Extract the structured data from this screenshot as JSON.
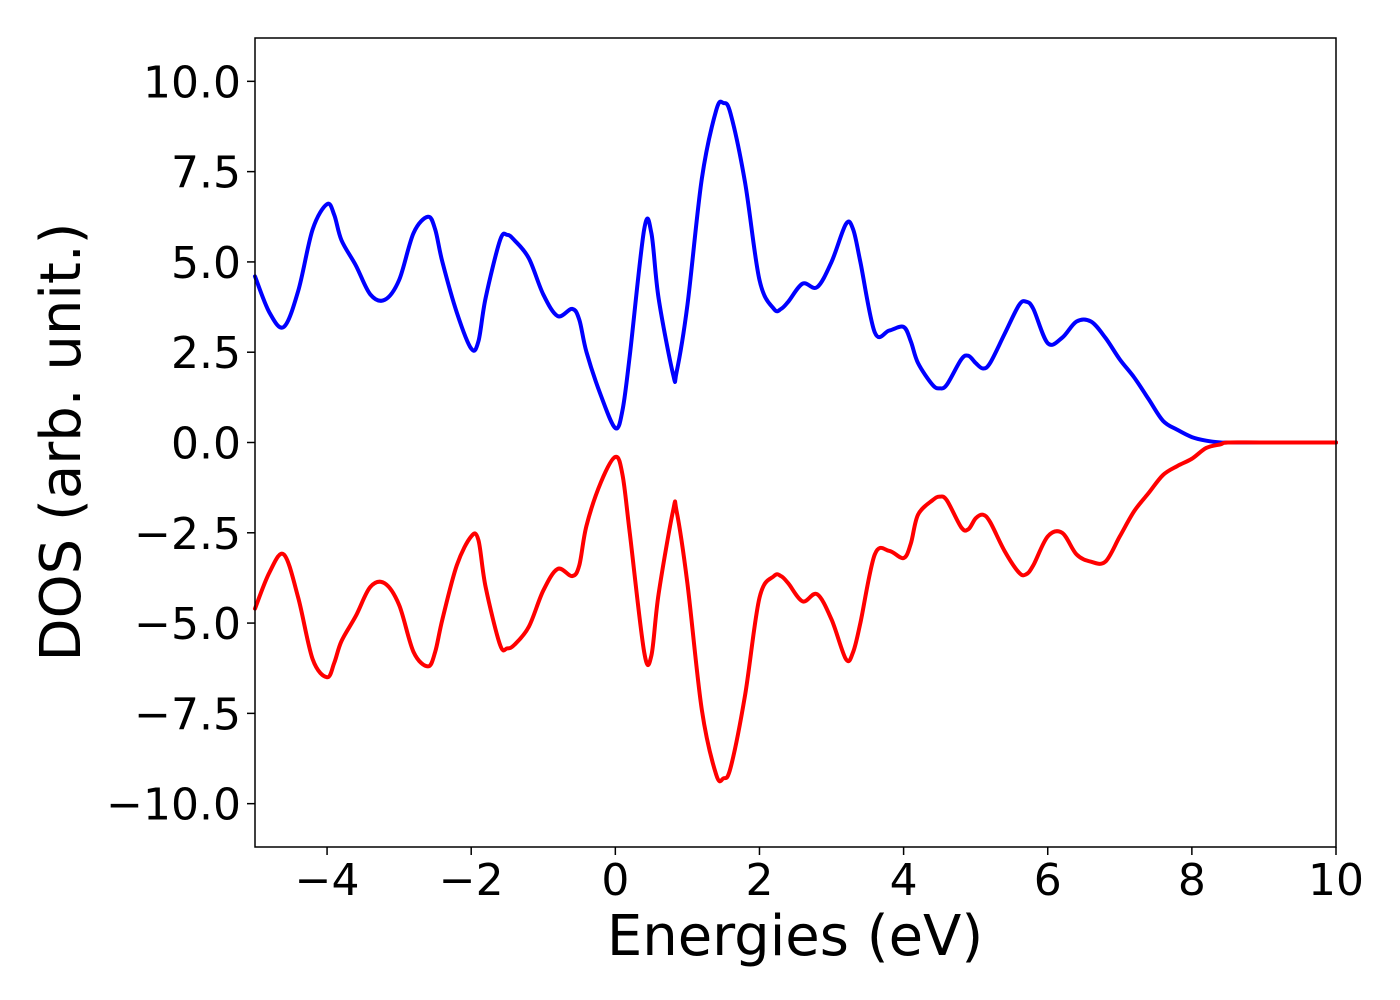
{
  "chart_data": {
    "type": "line",
    "title": "",
    "xlabel": "Energies (eV)",
    "ylabel": "DOS (arb. unit.)",
    "xlim": [
      -5,
      10
    ],
    "ylim": [
      -11.2,
      11.2
    ],
    "xticks": [
      -4,
      -2,
      0,
      2,
      4,
      6,
      8,
      10
    ],
    "xtick_labels": [
      "−4",
      "−2",
      "0",
      "2",
      "4",
      "6",
      "8",
      "10"
    ],
    "yticks": [
      10.0,
      7.5,
      5.0,
      2.5,
      0.0,
      -2.5,
      -5.0,
      -7.5,
      -10.0
    ],
    "ytick_labels": [
      "10.0",
      "7.5",
      "5.0",
      "2.5",
      "0.0",
      "−2.5",
      "−5.0",
      "−7.5",
      "−10.0"
    ],
    "grid": false,
    "legend": "none",
    "series": [
      {
        "color": "#0000ff",
        "x": [
          -5.0,
          -4.8,
          -4.6,
          -4.4,
          -4.2,
          -4.0,
          -3.9,
          -3.8,
          -3.6,
          -3.4,
          -3.2,
          -3.0,
          -2.8,
          -2.6,
          -2.5,
          -2.4,
          -2.2,
          -2.0,
          -1.9,
          -1.8,
          -1.6,
          -1.5,
          -1.4,
          -1.2,
          -1.0,
          -0.8,
          -0.6,
          -0.5,
          -0.4,
          -0.2,
          0.0,
          0.1,
          0.2,
          0.4,
          0.5,
          0.6,
          0.8,
          0.85,
          1.0,
          1.2,
          1.4,
          1.5,
          1.6,
          1.8,
          2.0,
          2.2,
          2.3,
          2.4,
          2.6,
          2.8,
          3.0,
          3.2,
          3.3,
          3.4,
          3.6,
          3.8,
          4.0,
          4.1,
          4.2,
          4.4,
          4.5,
          4.6,
          4.8,
          4.9,
          5.0,
          5.1,
          5.2,
          5.4,
          5.6,
          5.7,
          5.8,
          6.0,
          6.2,
          6.4,
          6.6,
          6.8,
          7.0,
          7.2,
          7.4,
          7.6,
          7.8,
          8.0,
          8.2,
          8.4,
          8.5,
          9.0,
          10.0
        ],
        "y": [
          4.6,
          3.6,
          3.2,
          4.2,
          5.9,
          6.6,
          6.3,
          5.6,
          4.9,
          4.1,
          3.95,
          4.5,
          5.8,
          6.25,
          5.9,
          5.0,
          3.6,
          2.6,
          2.8,
          4.0,
          5.6,
          5.75,
          5.6,
          5.1,
          4.1,
          3.5,
          3.7,
          3.4,
          2.5,
          1.3,
          0.4,
          0.9,
          2.4,
          5.9,
          5.8,
          4.0,
          1.9,
          1.95,
          3.8,
          7.3,
          9.2,
          9.4,
          9.1,
          7.2,
          4.5,
          3.7,
          3.7,
          3.9,
          4.4,
          4.3,
          5.0,
          6.05,
          5.9,
          5.0,
          3.05,
          3.1,
          3.2,
          2.8,
          2.2,
          1.6,
          1.5,
          1.6,
          2.3,
          2.4,
          2.2,
          2.05,
          2.2,
          3.0,
          3.8,
          3.9,
          3.7,
          2.75,
          2.9,
          3.35,
          3.35,
          2.9,
          2.3,
          1.8,
          1.2,
          0.6,
          0.35,
          0.15,
          0.05,
          0.0,
          0.0,
          0.0,
          0.0
        ]
      },
      {
        "color": "#ff0000",
        "x": [
          -5.0,
          -4.8,
          -4.6,
          -4.4,
          -4.2,
          -4.0,
          -3.9,
          -3.8,
          -3.6,
          -3.4,
          -3.2,
          -3.0,
          -2.8,
          -2.6,
          -2.5,
          -2.4,
          -2.2,
          -2.0,
          -1.9,
          -1.8,
          -1.6,
          -1.5,
          -1.4,
          -1.2,
          -1.0,
          -0.8,
          -0.6,
          -0.5,
          -0.4,
          -0.2,
          0.0,
          0.1,
          0.2,
          0.4,
          0.5,
          0.6,
          0.8,
          0.85,
          1.0,
          1.2,
          1.4,
          1.5,
          1.6,
          1.8,
          2.0,
          2.2,
          2.3,
          2.4,
          2.6,
          2.8,
          3.0,
          3.2,
          3.3,
          3.4,
          3.6,
          3.8,
          4.0,
          4.1,
          4.2,
          4.4,
          4.5,
          4.6,
          4.8,
          4.9,
          5.0,
          5.1,
          5.2,
          5.4,
          5.6,
          5.7,
          5.8,
          6.0,
          6.2,
          6.4,
          6.6,
          6.8,
          7.0,
          7.2,
          7.4,
          7.6,
          7.8,
          8.0,
          8.2,
          8.4,
          8.5,
          9.0,
          10.0
        ],
        "y": [
          -4.6,
          -3.6,
          -3.1,
          -4.3,
          -6.0,
          -6.5,
          -6.1,
          -5.5,
          -4.8,
          -4.0,
          -3.9,
          -4.5,
          -5.8,
          -6.2,
          -5.8,
          -4.9,
          -3.4,
          -2.6,
          -2.7,
          -4.0,
          -5.6,
          -5.7,
          -5.6,
          -5.1,
          -4.1,
          -3.5,
          -3.7,
          -3.4,
          -2.3,
          -1.1,
          -0.4,
          -0.9,
          -2.5,
          -5.8,
          -5.9,
          -4.2,
          -1.9,
          -1.9,
          -3.9,
          -7.4,
          -9.2,
          -9.3,
          -9.0,
          -7.0,
          -4.3,
          -3.7,
          -3.7,
          -3.9,
          -4.4,
          -4.2,
          -4.9,
          -6.0,
          -5.8,
          -5.0,
          -3.1,
          -3.0,
          -3.2,
          -2.8,
          -2.0,
          -1.6,
          -1.5,
          -1.6,
          -2.35,
          -2.4,
          -2.1,
          -2.0,
          -2.2,
          -3.0,
          -3.6,
          -3.65,
          -3.4,
          -2.6,
          -2.5,
          -3.1,
          -3.3,
          -3.3,
          -2.6,
          -1.9,
          -1.4,
          -0.9,
          -0.65,
          -0.45,
          -0.15,
          -0.05,
          0.0,
          0.0,
          0.0
        ]
      }
    ]
  }
}
